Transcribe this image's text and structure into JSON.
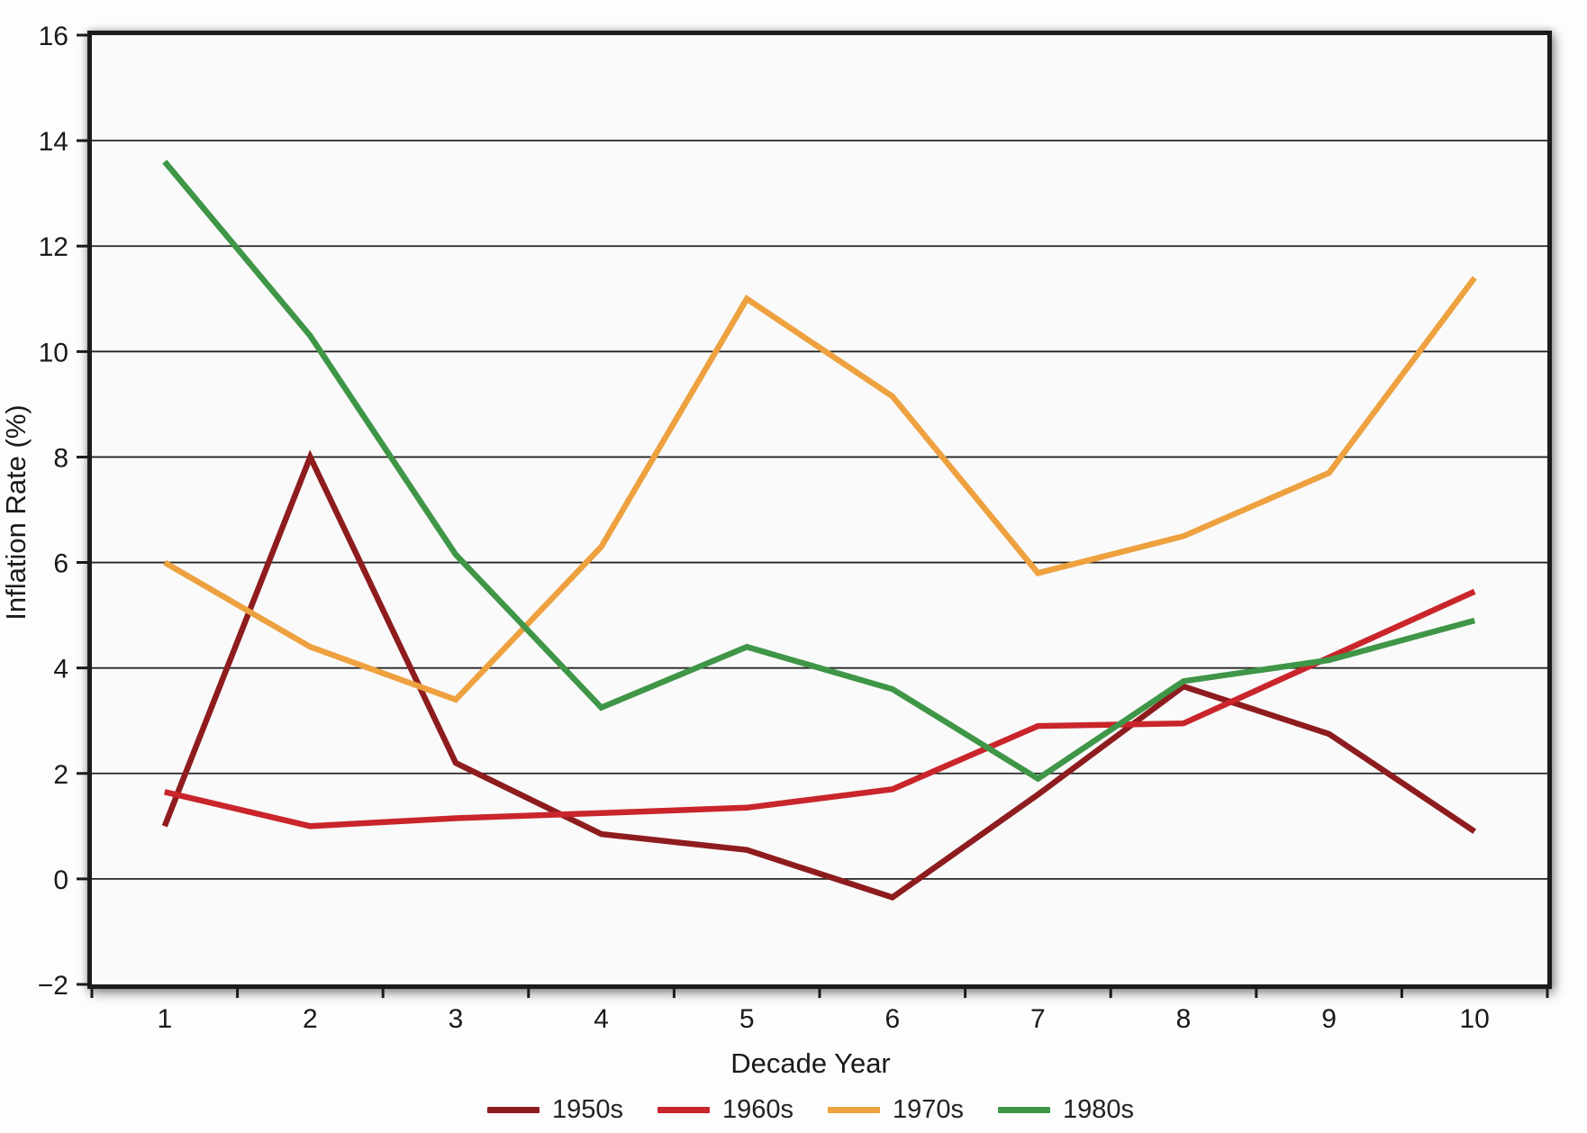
{
  "chart_data": {
    "type": "line",
    "title": "",
    "xlabel": "Decade Year",
    "ylabel": "Inflation Rate (%)",
    "x": [
      1,
      2,
      3,
      4,
      5,
      6,
      7,
      8,
      9,
      10
    ],
    "x_tick_labels": [
      "1",
      "2",
      "3",
      "4",
      "5",
      "6",
      "7",
      "8",
      "9",
      "10"
    ],
    "y_tick_values": [
      16,
      14,
      12,
      10,
      8,
      6,
      4,
      2,
      0,
      -2
    ],
    "y_tick_labels": [
      "16",
      "14",
      "12",
      "10",
      "8",
      "6",
      "4",
      "2",
      "0",
      "−2"
    ],
    "ylim": [
      -2,
      16
    ],
    "gridlines": "horizontal black lines every 2 units",
    "legend_position": "bottom-center",
    "frame_color": "#1c1c1c",
    "plot_background": "#fafafa",
    "series": [
      {
        "name": "1950s",
        "color": "#8e1c1f",
        "values": [
          1.0,
          8.0,
          2.2,
          0.85,
          0.55,
          -0.35,
          1.6,
          3.65,
          2.75,
          0.9
        ]
      },
      {
        "name": "1960s",
        "color": "#c9252b",
        "values": [
          1.65,
          1.0,
          1.15,
          1.25,
          1.35,
          1.7,
          2.9,
          2.95,
          4.2,
          5.45
        ]
      },
      {
        "name": "1970s",
        "color": "#eea13f",
        "values": [
          6.0,
          4.4,
          3.4,
          6.3,
          11.0,
          9.15,
          5.8,
          6.5,
          7.7,
          11.4
        ]
      },
      {
        "name": "1980s",
        "color": "#3f9647",
        "values": [
          13.6,
          10.3,
          6.15,
          3.25,
          4.4,
          3.6,
          1.9,
          3.75,
          4.15,
          4.9
        ]
      }
    ]
  }
}
